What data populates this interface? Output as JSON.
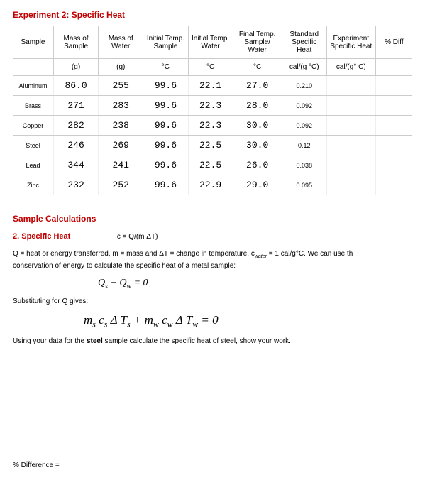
{
  "title": "Experiment 2: Specific Heat",
  "table": {
    "headers": [
      "Sample",
      "Mass of Sample",
      "Mass of Water",
      "Initial Temp. Sample",
      "Initial Temp. Water",
      "Final Temp. Sample/ Water",
      "Standard Specific Heat",
      "Experiment Specific Heat",
      "% Diff"
    ],
    "units": [
      "",
      "(g)",
      "(g)",
      "°C",
      "°C",
      "°C",
      "cal/(g °C)",
      "cal/(g° C)",
      ""
    ],
    "rows": [
      {
        "name": "Aluminum",
        "ms": "86.0",
        "mw": "255",
        "ti": "99.6",
        "tw": "22.1",
        "tf": "27.0",
        "std": "0.210",
        "exp": "",
        "diff": ""
      },
      {
        "name": "Brass",
        "ms": "271",
        "mw": "283",
        "ti": "99.6",
        "tw": "22.3",
        "tf": "28.0",
        "std": "0.092",
        "exp": "",
        "diff": ""
      },
      {
        "name": "Copper",
        "ms": "282",
        "mw": "238",
        "ti": "99.6",
        "tw": "22.3",
        "tf": "30.0",
        "std": "0.092",
        "exp": "",
        "diff": ""
      },
      {
        "name": "Steel",
        "ms": "246",
        "mw": "269",
        "ti": "99.6",
        "tw": "22.5",
        "tf": "30.0",
        "std": "0.12",
        "exp": "",
        "diff": ""
      },
      {
        "name": "Lead",
        "ms": "344",
        "mw": "241",
        "ti": "99.6",
        "tw": "22.5",
        "tf": "26.0",
        "std": "0.038",
        "exp": "",
        "diff": ""
      },
      {
        "name": "Zinc",
        "ms": "232",
        "mw": "252",
        "ti": "99.6",
        "tw": "22.9",
        "tf": "29.0",
        "std": "0.095",
        "exp": "",
        "diff": ""
      }
    ]
  },
  "calc_heading": "Sample Calculations",
  "sub_heading": "2. Specific Heat",
  "formula_def": "c = Q/(m ΔT)",
  "para1_a": "Q = heat or energy transferred,   m = mass and   ΔT = change in temperature,   c",
  "para1_sub": "water",
  "para1_b": " = 1 cal/g°C.  We can use th",
  "para1_c": "conservation of energy to calculate the specific heat of a metal sample:",
  "eq1": "Q",
  "eq1_s": "s",
  "eq1_mid": " + Q",
  "eq1_w": "w",
  "eq1_end": " = 0",
  "subst": "Substituting for Q gives:",
  "eq2_parts": {
    "a": "m",
    "as": "s",
    "b": "c",
    "bs": "s",
    "c": "Δ T",
    "cs": "s",
    "plus": " + ",
    "d": "m",
    "ds": "w",
    "e": "c",
    "es": "w",
    "f": "Δ T",
    "fs": "w",
    "eq": " = 0"
  },
  "para2_a": "Using your data for the ",
  "para2_bold": "steel",
  "para2_b": " sample calculate the specific heat of steel, show your work.",
  "pct": "% Difference ="
}
